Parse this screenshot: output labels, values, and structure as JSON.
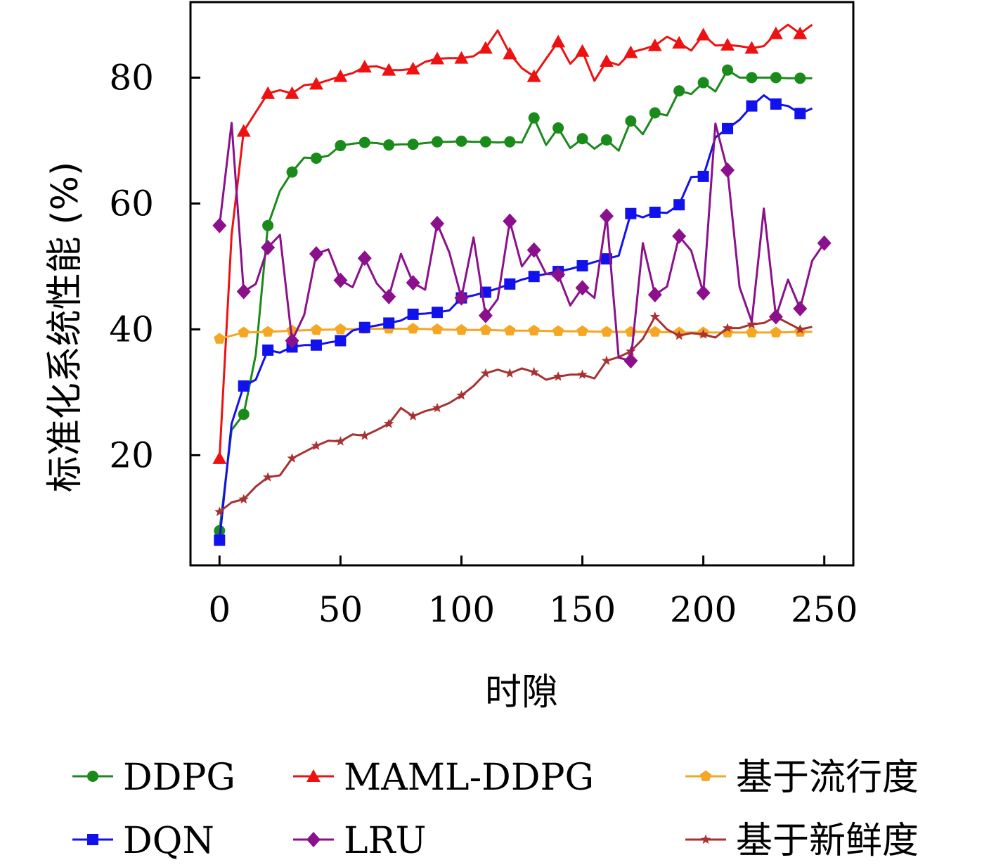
{
  "chart_data": {
    "type": "line",
    "title": "",
    "xlabel": "时隙",
    "ylabel": "标准化系统性能 (%)",
    "xlim": [
      -12,
      262
    ],
    "ylim": [
      2.5,
      92
    ],
    "xticks": [
      0,
      50,
      100,
      150,
      200,
      250
    ],
    "yticks": [
      20,
      40,
      60,
      80
    ],
    "grid": false,
    "legend_position": "bottom",
    "series": [
      {
        "name": "DDPG",
        "color": "#1a8a1a",
        "marker": "circle",
        "x": [
          0,
          5,
          10,
          15,
          20,
          25,
          30,
          35,
          40,
          45,
          50,
          55,
          60,
          65,
          70,
          75,
          80,
          85,
          90,
          95,
          100,
          105,
          110,
          115,
          120,
          125,
          130,
          135,
          140,
          145,
          150,
          155,
          160,
          165,
          170,
          175,
          180,
          185,
          190,
          195,
          200,
          205,
          210,
          215,
          220,
          225,
          230,
          235,
          240,
          245
        ],
        "y": [
          8,
          24,
          26.5,
          36,
          56.5,
          62,
          65,
          67.3,
          67.2,
          67.6,
          69.2,
          69.5,
          69.7,
          69.6,
          69.3,
          69.4,
          69.4,
          69.6,
          69.8,
          69.8,
          69.9,
          69.8,
          69.8,
          69.7,
          69.8,
          69.7,
          73.6,
          69.3,
          72,
          68.8,
          70.3,
          68.7,
          70.1,
          68.4,
          73.1,
          71,
          74.4,
          74,
          77.9,
          77.4,
          79.2,
          77.8,
          81.2,
          80,
          80,
          80,
          80,
          79.9,
          79.9,
          79.9
        ],
        "marker_x": [
          0,
          10,
          20,
          30,
          40,
          50,
          60,
          70,
          80,
          90,
          100,
          110,
          120,
          130,
          140,
          150,
          160,
          170,
          180,
          190,
          200,
          210,
          220,
          230,
          240
        ]
      },
      {
        "name": "MAML-DDPG",
        "color": "#ee1111",
        "marker": "triangle",
        "x": [
          0,
          5,
          10,
          15,
          20,
          25,
          30,
          35,
          40,
          45,
          50,
          55,
          60,
          65,
          70,
          75,
          80,
          85,
          90,
          95,
          100,
          105,
          110,
          115,
          120,
          125,
          130,
          135,
          140,
          145,
          150,
          155,
          160,
          165,
          170,
          175,
          180,
          185,
          190,
          195,
          200,
          205,
          210,
          215,
          220,
          225,
          230,
          235,
          240,
          245
        ],
        "y": [
          19.5,
          55,
          71.5,
          74.5,
          77.5,
          78,
          77.5,
          78.8,
          79,
          79.6,
          80.2,
          80.7,
          81.7,
          81.8,
          81.2,
          81.2,
          81.4,
          82.5,
          83,
          83.1,
          83.1,
          83.4,
          84.7,
          87.5,
          83.8,
          81.5,
          80.2,
          83,
          85.7,
          82.2,
          84.2,
          79.5,
          82.6,
          82,
          84,
          84.5,
          85.1,
          86.5,
          85.5,
          84.3,
          86.8,
          85.1,
          85.2,
          85,
          84.7,
          85,
          87,
          88.4,
          87,
          88.4
        ],
        "marker_x": [
          0,
          10,
          20,
          30,
          40,
          50,
          60,
          70,
          80,
          90,
          100,
          110,
          120,
          130,
          140,
          150,
          160,
          170,
          180,
          190,
          200,
          210,
          220,
          230,
          240
        ]
      },
      {
        "name": "基于流行度",
        "color": "#f5a623",
        "marker": "pentagon",
        "x": [
          0,
          10,
          20,
          30,
          40,
          50,
          60,
          70,
          80,
          90,
          100,
          110,
          120,
          130,
          140,
          150,
          160,
          170,
          180,
          190,
          200,
          210,
          220,
          230,
          240,
          245
        ],
        "y": [
          38.5,
          39.5,
          39.6,
          39.8,
          39.9,
          40,
          40.1,
          40.1,
          40.1,
          40,
          39.9,
          39.9,
          39.8,
          39.8,
          39.7,
          39.7,
          39.6,
          39.6,
          39.6,
          39.5,
          39.5,
          39.5,
          39.5,
          39.5,
          39.6,
          39.6
        ],
        "marker_x": [
          0,
          10,
          20,
          30,
          40,
          50,
          60,
          70,
          80,
          90,
          100,
          110,
          120,
          130,
          140,
          150,
          160,
          170,
          180,
          190,
          200,
          210,
          220,
          230,
          240
        ]
      },
      {
        "name": "DQN",
        "color": "#1111ee",
        "marker": "square",
        "x": [
          0,
          5,
          10,
          15,
          20,
          25,
          30,
          35,
          40,
          45,
          50,
          55,
          60,
          65,
          70,
          75,
          80,
          85,
          90,
          95,
          100,
          105,
          110,
          115,
          120,
          125,
          130,
          135,
          140,
          145,
          150,
          155,
          160,
          165,
          170,
          175,
          180,
          185,
          190,
          195,
          200,
          205,
          210,
          215,
          220,
          225,
          230,
          235,
          240,
          245
        ],
        "y": [
          6.5,
          25,
          31,
          32,
          36.7,
          36.3,
          37.2,
          37.5,
          37.5,
          37.9,
          38.2,
          39.8,
          40.3,
          40.6,
          41,
          41.4,
          42.4,
          42.5,
          42.7,
          43,
          45,
          45.4,
          45.9,
          46.5,
          47.2,
          47.9,
          48.4,
          48.8,
          49.2,
          49.6,
          50.1,
          50.7,
          51.2,
          51.7,
          58.4,
          57.8,
          58.6,
          58.5,
          59.8,
          64.2,
          64.3,
          70.5,
          71.9,
          73.3,
          75.5,
          77.2,
          75.8,
          75.5,
          74.3,
          75.1
        ],
        "marker_x": [
          0,
          10,
          20,
          30,
          40,
          50,
          60,
          70,
          80,
          90,
          100,
          110,
          120,
          130,
          140,
          150,
          160,
          170,
          180,
          190,
          200,
          210,
          220,
          230,
          240
        ]
      },
      {
        "name": "LRU",
        "color": "#8b108b",
        "marker": "diamond",
        "x": [
          0,
          5,
          10,
          15,
          20,
          25,
          30,
          35,
          40,
          45,
          50,
          55,
          60,
          65,
          70,
          75,
          80,
          85,
          90,
          95,
          100,
          105,
          110,
          115,
          120,
          125,
          130,
          135,
          140,
          145,
          150,
          155,
          160,
          165,
          170,
          175,
          180,
          185,
          190,
          195,
          200,
          205,
          210,
          215,
          220,
          225,
          230,
          235,
          240,
          245,
          250
        ],
        "y": [
          56.5,
          72.8,
          46,
          47.2,
          53,
          55,
          38.2,
          42.3,
          52,
          52.7,
          47.8,
          46.7,
          51.3,
          47.3,
          45.2,
          52,
          47.4,
          46.3,
          56.8,
          52.2,
          45,
          54.6,
          42.2,
          44.8,
          57.2,
          50,
          52.6,
          48.8,
          48.7,
          43.8,
          46.6,
          45,
          58,
          35.5,
          35,
          53.7,
          45.5,
          46.8,
          54.8,
          52.5,
          45.8,
          72.7,
          65.3,
          46.7,
          41.2,
          59.2,
          42,
          47.9,
          43.3,
          50.9,
          53.7
        ],
        "marker_x": [
          0,
          10,
          20,
          30,
          40,
          50,
          60,
          70,
          80,
          90,
          100,
          110,
          120,
          130,
          140,
          150,
          160,
          170,
          180,
          190,
          200,
          210,
          230,
          240,
          250
        ]
      },
      {
        "name": "基于新鲜度",
        "color": "#a83232",
        "marker": "star",
        "x": [
          0,
          5,
          10,
          15,
          20,
          25,
          30,
          35,
          40,
          45,
          50,
          55,
          60,
          65,
          70,
          75,
          80,
          85,
          90,
          95,
          100,
          105,
          110,
          115,
          120,
          125,
          130,
          135,
          140,
          145,
          150,
          155,
          160,
          165,
          170,
          175,
          180,
          185,
          190,
          195,
          200,
          205,
          210,
          215,
          220,
          225,
          230,
          235,
          240,
          245
        ],
        "y": [
          11,
          12.5,
          13,
          15,
          16.5,
          16.8,
          19.5,
          20.5,
          21.5,
          22.3,
          22.2,
          23.3,
          23.1,
          24,
          25,
          27.5,
          26.2,
          27,
          27.5,
          28.3,
          29.5,
          31,
          33,
          33.6,
          33,
          33.8,
          33.2,
          32,
          32.5,
          32.8,
          32.8,
          32.2,
          35,
          35.6,
          36.5,
          38.5,
          42,
          40,
          39,
          39.4,
          39.2,
          38.7,
          40.2,
          40.2,
          40.8,
          41,
          42,
          41,
          40,
          40.4
        ],
        "marker_x": [
          0,
          10,
          20,
          30,
          40,
          50,
          60,
          70,
          80,
          90,
          100,
          110,
          120,
          130,
          140,
          150,
          160,
          170,
          180,
          190,
          200,
          210,
          220,
          230,
          240
        ]
      }
    ]
  }
}
